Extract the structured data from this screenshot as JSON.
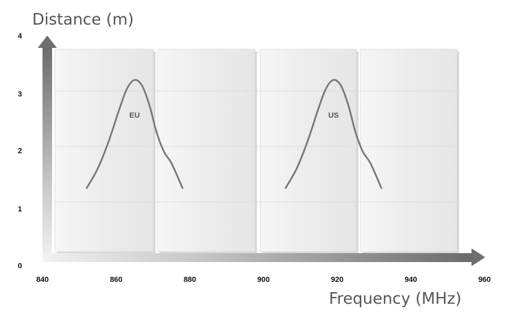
{
  "chart_data": {
    "type": "line",
    "xlabel": "Frequency (MHz)",
    "ylabel": "Distance (m)",
    "xlim": [
      840,
      960
    ],
    "ylim": [
      0,
      4
    ],
    "x_ticks": [
      840,
      860,
      880,
      900,
      920,
      940,
      960
    ],
    "y_ticks": [
      0,
      1,
      2,
      3,
      4
    ],
    "grid": "horizontal",
    "series": [
      {
        "name": "EU",
        "points": [
          [
            852,
            1.25
          ],
          [
            855,
            1.6
          ],
          [
            858,
            2.1
          ],
          [
            861,
            2.7
          ],
          [
            863,
            3.05
          ],
          [
            865,
            3.2
          ],
          [
            867,
            3.1
          ],
          [
            869,
            2.75
          ],
          [
            871,
            2.25
          ],
          [
            873,
            1.9
          ],
          [
            875,
            1.7
          ],
          [
            878,
            1.25
          ]
        ]
      },
      {
        "name": "US",
        "points": [
          [
            906,
            1.25
          ],
          [
            909,
            1.6
          ],
          [
            912,
            2.1
          ],
          [
            915,
            2.7
          ],
          [
            917,
            3.05
          ],
          [
            919,
            3.2
          ],
          [
            921,
            3.1
          ],
          [
            923,
            2.75
          ],
          [
            925,
            2.25
          ],
          [
            927,
            1.9
          ],
          [
            929,
            1.7
          ],
          [
            932,
            1.25
          ]
        ]
      }
    ],
    "colors": {
      "curve": "#777777",
      "axis_arrow": "#6e6e6e",
      "panel": "#eeeeee",
      "grid": "#dddddd",
      "text": "#111111",
      "axis_title": "#555555"
    }
  }
}
